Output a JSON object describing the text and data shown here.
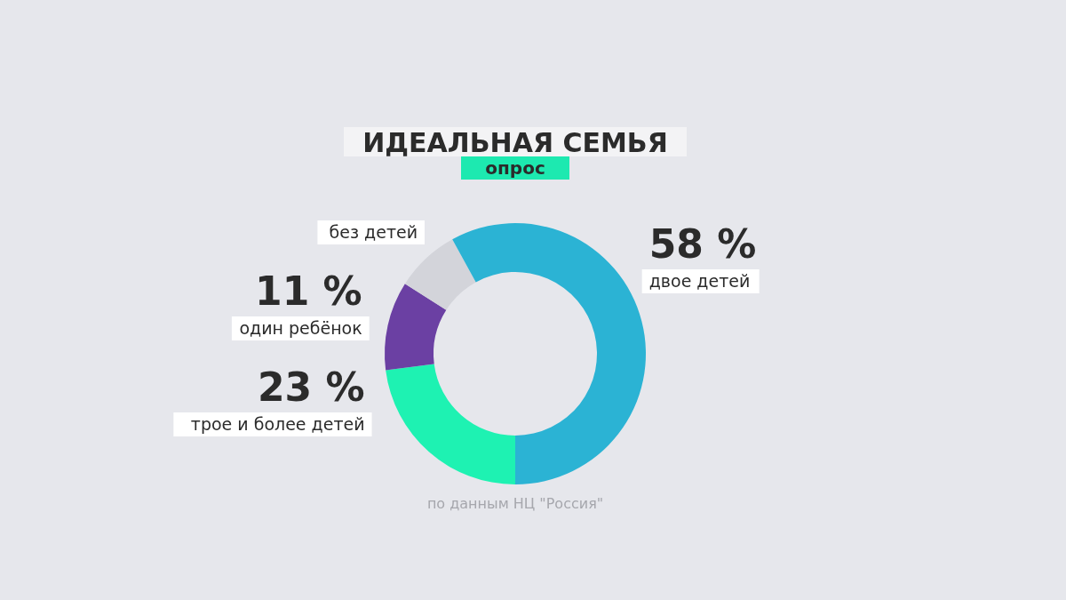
{
  "chart_data": {
    "type": "donut",
    "title": "ИДЕАЛЬНАЯ СЕМЬЯ",
    "subtitle": "опрос",
    "categories": [
      "трое и более детей",
      "один ребёнок",
      "без детей",
      "двое детей"
    ],
    "values": [
      23,
      11,
      8,
      58
    ],
    "colors": [
      "#1ef2b2",
      "#6b40a3",
      "#d3d4da",
      "#2bb3d4"
    ],
    "value_labels": [
      "23 %",
      "11 %",
      null,
      "58 %"
    ],
    "annotations": [
      "по данным НЦ \"Россия\""
    ]
  }
}
